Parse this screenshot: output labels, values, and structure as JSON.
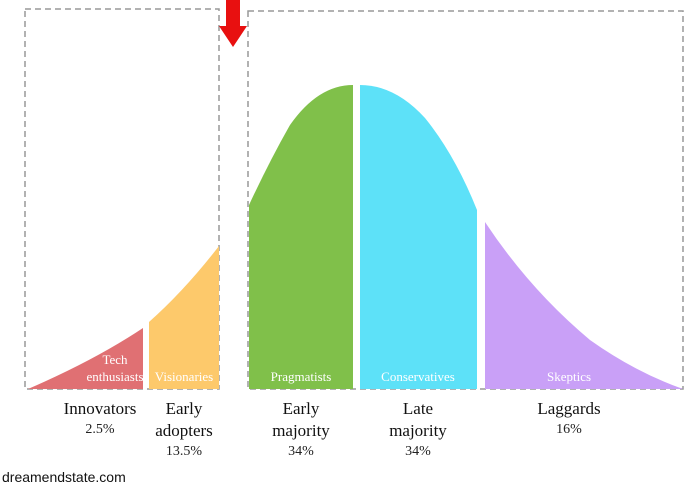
{
  "segments": [
    {
      "inner_label": [
        "Tech",
        "enthusiasts"
      ],
      "name": [
        "Innovators"
      ],
      "share": "2.5%"
    },
    {
      "inner_label": [
        "Visionaries"
      ],
      "name": [
        "Early",
        "adopters"
      ],
      "share": "13.5%"
    },
    {
      "inner_label": [
        "Pragmatists"
      ],
      "name": [
        "Early",
        "majority"
      ],
      "share": "34%"
    },
    {
      "inner_label": [
        "Conservatives"
      ],
      "name": [
        "Late",
        "majority"
      ],
      "share": "34%"
    },
    {
      "inner_label": [
        "Skeptics"
      ],
      "name": [
        "Laggards"
      ],
      "share": "16%"
    }
  ],
  "footer": "dreamendstate.com"
}
